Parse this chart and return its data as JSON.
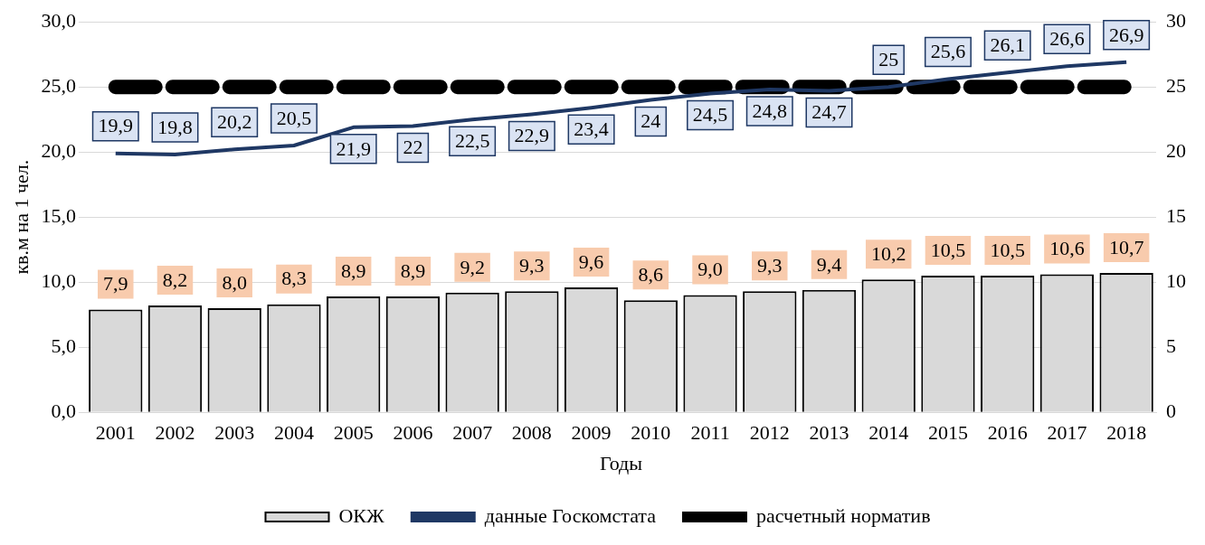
{
  "chart_data": {
    "type": "bar",
    "categories": [
      "2001",
      "2002",
      "2003",
      "2004",
      "2005",
      "2006",
      "2007",
      "2008",
      "2009",
      "2010",
      "2011",
      "2012",
      "2013",
      "2014",
      "2015",
      "2016",
      "2017",
      "2018"
    ],
    "xlabel": "Годы",
    "ylabel": "кв.м на 1 чел.",
    "ylim": [
      0,
      30
    ],
    "yticks": [
      {
        "value": 0,
        "label": "0,0"
      },
      {
        "value": 5,
        "label": "5,0"
      },
      {
        "value": 10,
        "label": "10,0"
      },
      {
        "value": 15,
        "label": "15,0"
      },
      {
        "value": 20,
        "label": "20,0"
      },
      {
        "value": 25,
        "label": "25,0"
      },
      {
        "value": 30,
        "label": "30,0"
      }
    ],
    "y2lim": [
      0,
      30
    ],
    "y2ticks": [
      0,
      5,
      10,
      15,
      20,
      25,
      30
    ],
    "grid": "y",
    "legend": "bottom",
    "series": [
      {
        "name": "ОКЖ",
        "color": "#d9d9d9",
        "values": [
          7.9,
          8.2,
          8.0,
          8.3,
          8.9,
          8.9,
          9.2,
          9.3,
          9.6,
          8.6,
          9.0,
          9.3,
          9.4,
          10.2,
          10.5,
          10.5,
          10.6,
          10.7
        ],
        "value_labels": [
          "7,9",
          "8,2",
          "8,0",
          "8,3",
          "8,9",
          "8,9",
          "9,2",
          "9,3",
          "9,6",
          "8,6",
          "9,0",
          "9,3",
          "9,4",
          "10,2",
          "10,5",
          "10,5",
          "10,6",
          "10,7"
        ]
      },
      {
        "name": "данные Госкомстата",
        "type": "line",
        "color": "#1f3864",
        "line_style": "solid",
        "marker": "none",
        "values": [
          19.9,
          19.8,
          20.2,
          20.5,
          21.9,
          22,
          22.5,
          22.9,
          23.4,
          24,
          24.5,
          24.8,
          24.7,
          25,
          25.6,
          26.1,
          26.6,
          26.9
        ],
        "value_labels": [
          "19,9",
          "19,8",
          "20,2",
          "20,5",
          "21,9",
          "22",
          "22,5",
          "22,9",
          "23,4",
          "24",
          "24,5",
          "24,8",
          "24,7",
          "25",
          "25,6",
          "26,1",
          "26,6",
          "26,9"
        ]
      },
      {
        "name": "расчетный норматив",
        "type": "line",
        "color": "#000000",
        "line_style": "dashed",
        "marker": "none",
        "values": [
          25,
          25,
          25,
          25,
          25,
          25,
          25,
          25,
          25,
          25,
          25,
          25,
          25,
          25,
          25,
          25,
          25,
          25
        ]
      }
    ]
  }
}
